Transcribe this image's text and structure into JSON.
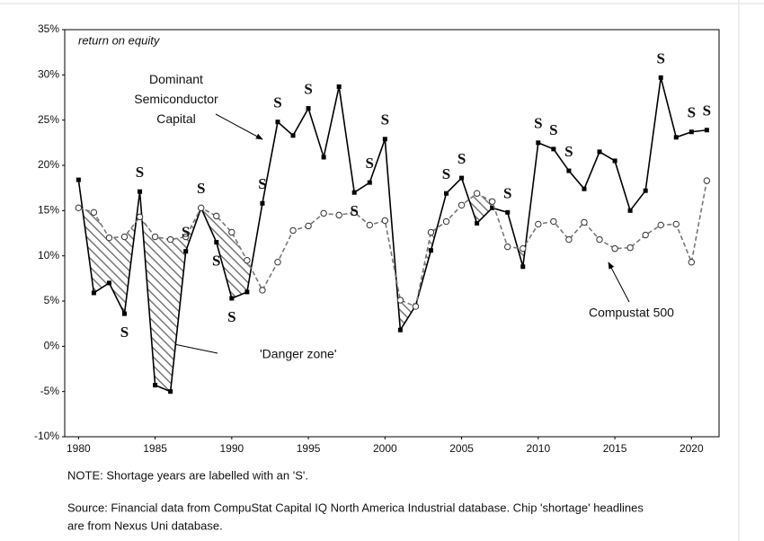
{
  "chart_data": {
    "type": "line",
    "y_label": "return on equity",
    "x": [
      1980,
      1981,
      1982,
      1983,
      1984,
      1985,
      1986,
      1987,
      1988,
      1989,
      1990,
      1991,
      1992,
      1993,
      1994,
      1995,
      1996,
      1997,
      1998,
      1999,
      2000,
      2001,
      2002,
      2003,
      2004,
      2005,
      2006,
      2007,
      2008,
      2009,
      2010,
      2011,
      2012,
      2013,
      2014,
      2015,
      2016,
      2017,
      2018,
      2019,
      2020,
      2021
    ],
    "series": [
      {
        "name": "Dominant Semiconductor Capital",
        "color": "#000000",
        "marker": "square",
        "dashed": false,
        "values": [
          18.4,
          5.9,
          7.0,
          3.6,
          17.1,
          -4.3,
          -5.0,
          10.5,
          15.3,
          11.5,
          5.3,
          6.0,
          15.8,
          24.8,
          23.3,
          26.3,
          20.9,
          28.7,
          17.0,
          18.1,
          22.9,
          1.8,
          4.5,
          10.6,
          16.9,
          18.6,
          13.6,
          15.3,
          14.8,
          8.8,
          22.5,
          21.8,
          19.4,
          17.4,
          21.5,
          20.5,
          15.0,
          17.2,
          29.7,
          23.1,
          23.7,
          23.9
        ]
      },
      {
        "name": "Compustat 500",
        "color": "#777777",
        "marker": "circle",
        "dashed": true,
        "values": [
          15.3,
          14.8,
          12.0,
          12.1,
          14.3,
          12.1,
          11.8,
          12.1,
          15.3,
          14.4,
          12.6,
          9.5,
          6.2,
          9.3,
          12.8,
          13.3,
          14.7,
          14.5,
          14.8,
          13.4,
          13.9,
          5.1,
          4.4,
          12.6,
          13.8,
          15.6,
          16.9,
          16.0,
          11.0,
          10.8,
          13.5,
          13.8,
          11.8,
          13.7,
          11.8,
          10.8,
          10.9,
          12.3,
          13.4,
          13.5,
          9.3,
          18.3
        ]
      }
    ],
    "shortage_label": "S",
    "shortage_years": [
      1983,
      1984,
      1987,
      1988,
      1989,
      1990,
      1992,
      1993,
      1995,
      1998,
      1999,
      2000,
      2004,
      2005,
      2008,
      2010,
      2011,
      2012,
      2018,
      2020,
      2021
    ],
    "danger_zone_label": "'Danger zone'",
    "xlim": [
      1979.1,
      2021.8
    ],
    "xticks": [
      1980,
      1985,
      1990,
      1995,
      2000,
      2005,
      2010,
      2015,
      2020
    ],
    "ylim": [
      -10,
      35
    ],
    "yticks": [
      {
        "value": -10,
        "label": "-10%"
      },
      {
        "value": -5,
        "label": "-5%"
      },
      {
        "value": 0,
        "label": "0%"
      },
      {
        "value": 5,
        "label": "5%"
      },
      {
        "value": 10,
        "label": "10%"
      },
      {
        "value": 15,
        "label": "15%"
      },
      {
        "value": 20,
        "label": "20%"
      },
      {
        "value": 25,
        "label": "25%"
      },
      {
        "value": 30,
        "label": "30%"
      },
      {
        "value": 35,
        "label": "35%"
      }
    ],
    "note": "NOTE: Shortage years are labelled with an 'S'.",
    "source": [
      "Source: Financial data from CompuStat Capital IQ North America Industrial database. Chip 'shortage' headlines",
      "are from Nexus Uni database."
    ]
  }
}
